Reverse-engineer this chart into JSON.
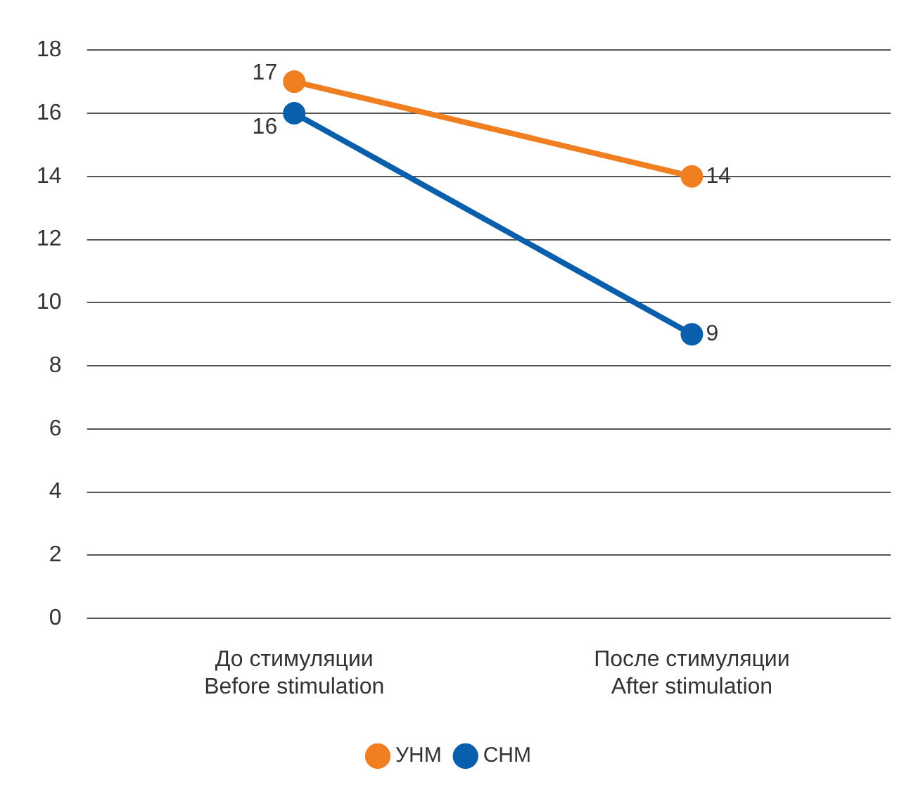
{
  "chart_data": {
    "type": "line",
    "categories": [
      "До стимуляции\nBefore stimulation",
      "После стимуляции\nAfter stimulation"
    ],
    "series": [
      {
        "name": "УНМ",
        "color": "#f07f21",
        "values": [
          17,
          14
        ]
      },
      {
        "name": "СНМ",
        "color": "#0a5fad",
        "values": [
          16,
          9
        ]
      }
    ],
    "ylim": [
      0,
      18
    ],
    "yticks": [
      0,
      2,
      4,
      6,
      8,
      10,
      12,
      14,
      16,
      18
    ],
    "grid": "y",
    "legend": "bottom",
    "marker": "circle",
    "line_style": "solid",
    "data_labels": true
  }
}
